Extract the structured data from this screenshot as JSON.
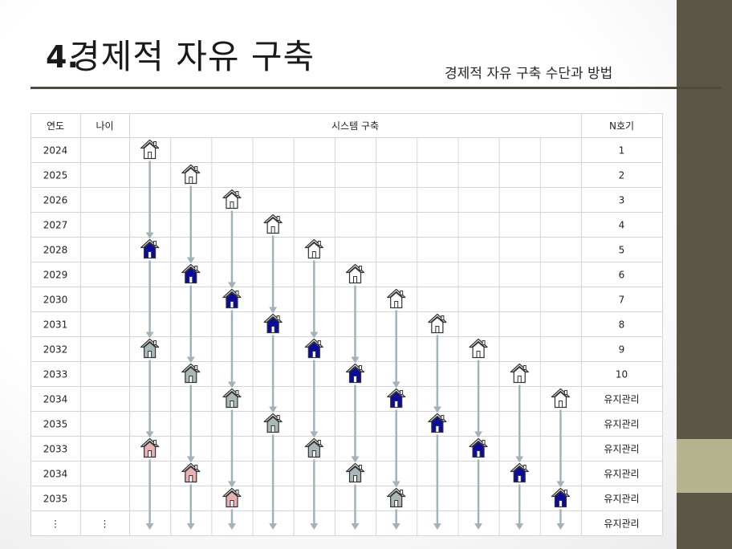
{
  "title": {
    "number": "4.",
    "text": "경제적 자유 구축"
  },
  "subtitle": "경제적 자유 구축 수단과 방법",
  "table": {
    "headers": {
      "year": "연도",
      "age": "나이",
      "system": "시스템 구축",
      "count": "N호기"
    },
    "rows": [
      {
        "year": "2024",
        "age": "",
        "count": "1"
      },
      {
        "year": "2025",
        "age": "",
        "count": "2"
      },
      {
        "year": "2026",
        "age": "",
        "count": "3"
      },
      {
        "year": "2027",
        "age": "",
        "count": "4"
      },
      {
        "year": "2028",
        "age": "",
        "count": "5"
      },
      {
        "year": "2029",
        "age": "",
        "count": "6"
      },
      {
        "year": "2030",
        "age": "",
        "count": "7"
      },
      {
        "year": "2031",
        "age": "",
        "count": "8"
      },
      {
        "year": "2032",
        "age": "",
        "count": "9"
      },
      {
        "year": "2033",
        "age": "",
        "count": "10"
      },
      {
        "year": "2034",
        "age": "",
        "count": "유지관리"
      },
      {
        "year": "2035",
        "age": "",
        "count": "유지관리"
      },
      {
        "year": "2033",
        "age": "",
        "count": "유지관리"
      },
      {
        "year": "2034",
        "age": "",
        "count": "유지관리"
      },
      {
        "year": "2035",
        "age": "",
        "count": "유지관리"
      },
      {
        "year": "⋮",
        "age": "⋮",
        "count": "유지관리"
      }
    ]
  },
  "house_colors": {
    "white": "#ffffff",
    "blue": "#0a0a9e",
    "gray": "#a9b9b9",
    "pink": "#e7b2b2"
  },
  "arrow_color": "#9fb4b9",
  "houses": [
    {
      "col": 0,
      "row": 0,
      "color": "white"
    },
    {
      "col": 0,
      "row": 4,
      "color": "blue"
    },
    {
      "col": 0,
      "row": 8,
      "color": "gray"
    },
    {
      "col": 0,
      "row": 12,
      "color": "pink"
    },
    {
      "col": 1,
      "row": 1,
      "color": "white"
    },
    {
      "col": 1,
      "row": 5,
      "color": "blue"
    },
    {
      "col": 1,
      "row": 9,
      "color": "gray"
    },
    {
      "col": 1,
      "row": 13,
      "color": "pink"
    },
    {
      "col": 2,
      "row": 2,
      "color": "white"
    },
    {
      "col": 2,
      "row": 6,
      "color": "blue"
    },
    {
      "col": 2,
      "row": 10,
      "color": "gray"
    },
    {
      "col": 2,
      "row": 14,
      "color": "pink"
    },
    {
      "col": 3,
      "row": 3,
      "color": "white"
    },
    {
      "col": 3,
      "row": 7,
      "color": "blue"
    },
    {
      "col": 3,
      "row": 11,
      "color": "gray"
    },
    {
      "col": 4,
      "row": 4,
      "color": "white"
    },
    {
      "col": 4,
      "row": 8,
      "color": "blue"
    },
    {
      "col": 4,
      "row": 12,
      "color": "gray"
    },
    {
      "col": 5,
      "row": 5,
      "color": "white"
    },
    {
      "col": 5,
      "row": 9,
      "color": "blue"
    },
    {
      "col": 5,
      "row": 13,
      "color": "gray"
    },
    {
      "col": 6,
      "row": 6,
      "color": "white"
    },
    {
      "col": 6,
      "row": 10,
      "color": "blue"
    },
    {
      "col": 6,
      "row": 14,
      "color": "gray"
    },
    {
      "col": 7,
      "row": 7,
      "color": "white"
    },
    {
      "col": 7,
      "row": 11,
      "color": "blue"
    },
    {
      "col": 8,
      "row": 8,
      "color": "white"
    },
    {
      "col": 8,
      "row": 12,
      "color": "blue"
    },
    {
      "col": 9,
      "row": 9,
      "color": "white"
    },
    {
      "col": 9,
      "row": 13,
      "color": "blue"
    },
    {
      "col": 10,
      "row": 10,
      "color": "white"
    },
    {
      "col": 10,
      "row": 14,
      "color": "blue"
    }
  ]
}
